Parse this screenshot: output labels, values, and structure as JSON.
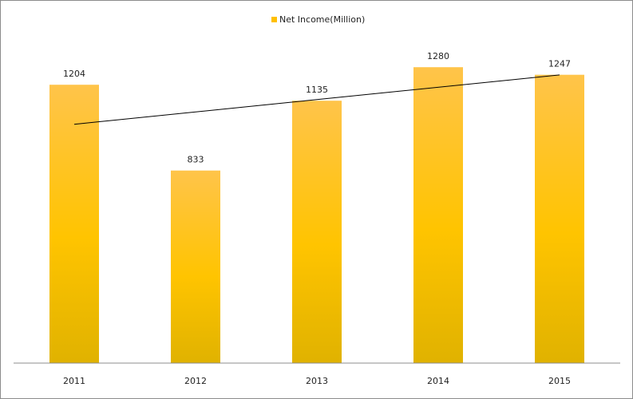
{
  "chart_data": {
    "type": "bar",
    "categories": [
      "2011",
      "2012",
      "2013",
      "2014",
      "2015"
    ],
    "series": [
      {
        "name": "Net Income(Million)",
        "values": [
          1204,
          833,
          1135,
          1280,
          1247
        ],
        "color": "#ffc000"
      }
    ],
    "data_labels": [
      "1204",
      "833",
      "1135",
      "1280",
      "1247"
    ],
    "trendline": {
      "type": "linear",
      "color": "#000000"
    },
    "title": "",
    "xlabel": "",
    "ylabel": "",
    "ylim": [
      0,
      1400
    ],
    "grid": false,
    "legend": {
      "position": "top"
    }
  }
}
